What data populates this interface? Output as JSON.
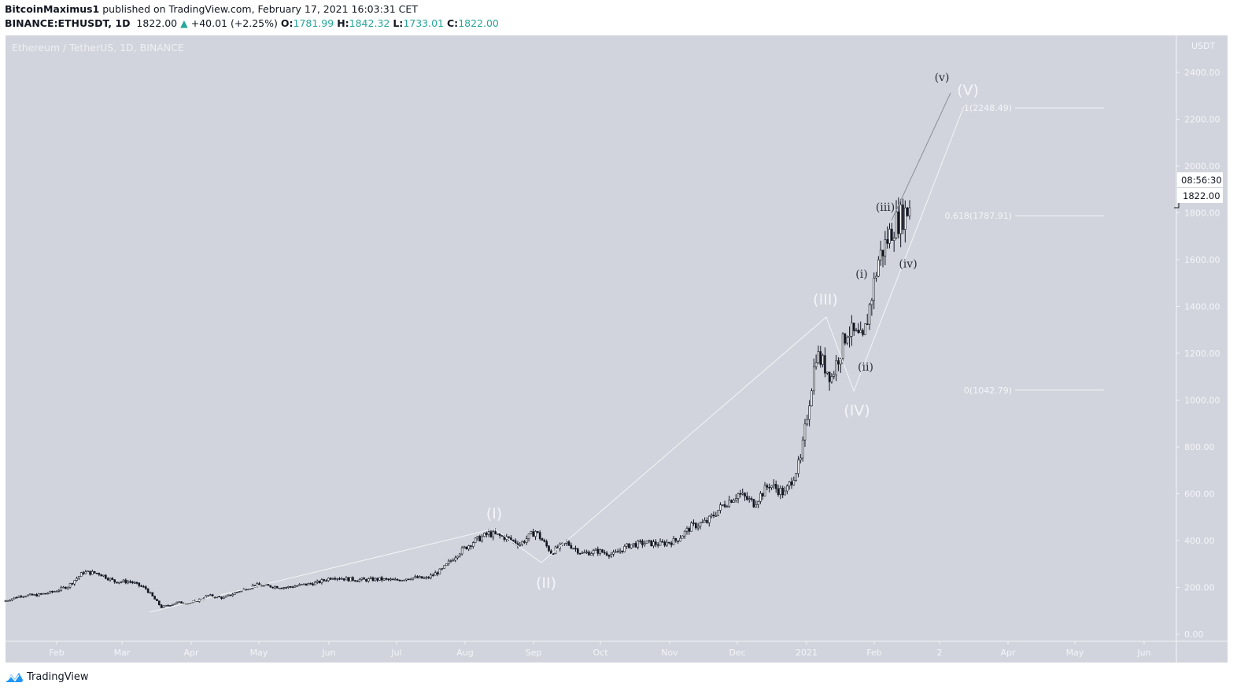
{
  "header": {
    "author": "BitcoinMaximus1",
    "published": " published on TradingView.com, February 17, 2021 16:03:31 CET",
    "symbol": "BINANCE:ETHUSDT, 1D",
    "last": "1822.00",
    "change": "+40.01 (+2.25%)",
    "o_label": "O:",
    "o": "1781.99",
    "h_label": "H:",
    "h": "1842.32",
    "l_label": "L:",
    "l": "1733.01",
    "c_label": "C:",
    "c": "1822.00"
  },
  "watermark": "Ethereum / TetherUS, 1D, BINANCE",
  "brand": "TradingView",
  "colors": {
    "background": "#d1d4dc",
    "up": "#ffffff",
    "down": "#131722",
    "change": "#26a69a",
    "brand": "#2196f3"
  },
  "chart_data": {
    "type": "candlestick",
    "currency": "USDT",
    "ylim": [
      0,
      2400
    ],
    "yticks": [
      "2400.00",
      "2200.00",
      "2000.00",
      "1800.00",
      "1600.00",
      "1400.00",
      "1200.00",
      "1000.00",
      "800.00",
      "600.00",
      "400.00",
      "200.00",
      "0.00"
    ],
    "xticks": [
      "Feb",
      "Mar",
      "Apr",
      "May",
      "Jun",
      "Jul",
      "Aug",
      "Sep",
      "Oct",
      "Nov",
      "Dec",
      "2021",
      "Feb",
      "2",
      "Apr",
      "May",
      "Jun"
    ],
    "x_start": "2020-01-08",
    "x_end": "2021-02-17",
    "weekly_closes": [
      143,
      165,
      167,
      180,
      205,
      265,
      260,
      225,
      225,
      195,
      115,
      135,
      135,
      165,
      155,
      185,
      210,
      205,
      200,
      210,
      220,
      245,
      235,
      232,
      235,
      230,
      242,
      238,
      275,
      345,
      395,
      430,
      415,
      385,
      440,
      350,
      390,
      345,
      355,
      340,
      380,
      390,
      385,
      400,
      460,
      480,
      550,
      600,
      560,
      640,
      600,
      740,
      1200,
      1100,
      1300,
      1250,
      1600,
      1750,
      1822
    ],
    "price_label": "1822.00",
    "countdown": "08:56:30",
    "fib_levels": [
      {
        "label": "1(2248.49)",
        "value": 2248.49
      },
      {
        "label": "0.618(1787.91)",
        "value": 1787.91
      },
      {
        "label": "0(1042.79)",
        "value": 1042.79
      }
    ],
    "wave_labels": {
      "I": "(I)",
      "II": "(II)",
      "III": "(III)",
      "IV": "(IV)",
      "V": "(V)",
      "i": "(i)",
      "ii": "(ii)",
      "iii": "(iii)",
      "iv": "(iv)",
      "v": "(v)"
    }
  }
}
